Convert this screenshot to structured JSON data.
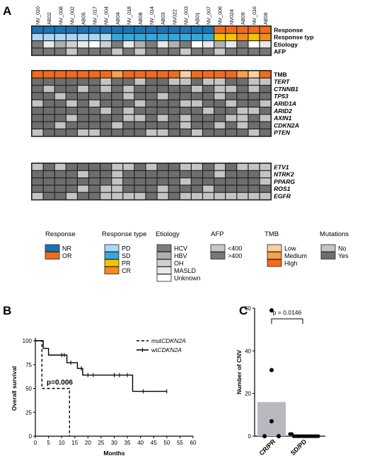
{
  "figure": {
    "panel_labels": {
      "a": "A",
      "b": "B",
      "c": "C"
    }
  },
  "colors": {
    "nr": "#1a73b5",
    "or": "#f26b1d",
    "pd": "#a8d8f4",
    "sd": "#36a7dc",
    "pr": "#f5c400",
    "cr": "#f58a1f",
    "hcv": "#7c7c7c",
    "hbv": "#b0b0b0",
    "oh": "#d0d0d0",
    "masld": "#e8e8e8",
    "unknown": "#ffffff",
    "afp_low": "#c8c8c8",
    "afp_high": "#777777",
    "tmb_low": "#fbcf9b",
    "tmb_medium": "#f9a049",
    "tmb_high": "#f26b1d",
    "mut_no": "#c4c4c4",
    "mut_yes": "#6e6e6e"
  },
  "heatmap": {
    "samples": [
      "NV_020",
      "AB02",
      "NV_008",
      "NV_002",
      "AB05",
      "NV_017",
      "NV_004",
      "AB04",
      "NV_018",
      "AB08",
      "NV_014",
      "AB03",
      "NV022",
      "NV_003",
      "AB01",
      "NV_007",
      "NV_006",
      "NV024",
      "AB09",
      "NV_016",
      "AB06"
    ],
    "block1": {
      "rows": [
        "Response",
        "Response typ",
        "Etiology",
        "AFP"
      ],
      "values": [
        [
          "nr",
          "nr",
          "nr",
          "nr",
          "nr",
          "nr",
          "nr",
          "nr",
          "nr",
          "nr",
          "nr",
          "nr",
          "nr",
          "nr",
          "nr",
          "nr",
          "or",
          "or",
          "or",
          "or",
          "or"
        ],
        [
          "pd",
          "pd",
          "pd",
          "pd",
          "pd",
          "pd",
          "pd",
          "sd",
          "sd",
          "sd",
          "sd",
          "sd",
          "sd",
          "sd",
          "sd",
          "sd",
          "pr",
          "pr",
          "cr",
          "pr",
          "cr"
        ],
        [
          "hcv",
          "masld",
          "hbv",
          "oh",
          "masld",
          "unknown",
          "oh",
          "hcv",
          "masld",
          "hbv",
          "hcv",
          "masld",
          "hbv",
          "hcv",
          "unknown",
          "masld",
          "hbv",
          "masld",
          "hcv",
          "unknown",
          "masld"
        ],
        [
          "afp_high",
          "afp_high",
          "afp_high",
          "afp_low",
          "afp_high",
          "afp_high",
          "afp_high",
          "afp_low",
          "afp_high",
          "afp_low",
          "afp_high",
          "afp_high",
          "afp_high",
          "afp_low",
          "afp_high",
          "afp_high",
          "afp_low",
          "afp_high",
          "afp_high",
          "afp_high",
          "afp_high"
        ]
      ]
    },
    "block2": {
      "rows": [
        "TMB",
        "TERT",
        "CTNNB1",
        "TP53",
        "ARID1A",
        "ARID2",
        "AXIN1",
        "CDKN2A",
        "PTEN"
      ],
      "tmb": [
        "tmb_high",
        "tmb_high",
        "tmb_high",
        "tmb_high",
        "tmb_high",
        "tmb_high",
        "tmb_high",
        "tmb_medium",
        "tmb_high",
        "tmb_high",
        "tmb_high",
        "tmb_high",
        "tmb_high",
        "tmb_low",
        "tmb_high",
        "tmb_high",
        "tmb_high",
        "tmb_high",
        "tmb_medium",
        "tmb_low",
        "tmb_high"
      ],
      "mutations": [
        [
          1,
          1,
          1,
          1,
          1,
          1,
          0,
          1,
          1,
          0,
          1,
          1,
          0,
          0,
          1,
          0,
          0,
          1,
          1,
          0,
          0
        ],
        [
          1,
          0,
          1,
          1,
          0,
          1,
          0,
          1,
          0,
          1,
          1,
          1,
          1,
          1,
          0,
          1,
          0,
          0,
          1,
          0,
          1
        ],
        [
          1,
          1,
          0,
          1,
          1,
          1,
          1,
          1,
          0,
          1,
          1,
          0,
          1,
          1,
          1,
          1,
          0,
          1,
          1,
          1,
          1
        ],
        [
          0,
          1,
          1,
          0,
          1,
          0,
          1,
          1,
          1,
          0,
          1,
          1,
          1,
          0,
          0,
          1,
          1,
          0,
          1,
          1,
          0
        ],
        [
          1,
          1,
          1,
          1,
          1,
          1,
          0,
          1,
          0,
          1,
          1,
          1,
          1,
          1,
          1,
          0,
          1,
          1,
          0,
          0,
          1
        ],
        [
          1,
          1,
          1,
          0,
          1,
          1,
          1,
          1,
          0,
          0,
          1,
          0,
          1,
          0,
          1,
          1,
          1,
          0,
          0,
          1,
          0
        ],
        [
          1,
          1,
          0,
          1,
          1,
          1,
          1,
          0,
          1,
          1,
          1,
          1,
          1,
          0,
          1,
          1,
          0,
          1,
          0,
          1,
          1
        ],
        [
          0,
          1,
          1,
          1,
          0,
          0,
          1,
          1,
          1,
          1,
          0,
          0,
          1,
          1,
          0,
          1,
          1,
          1,
          1,
          0,
          1
        ]
      ]
    },
    "block3": {
      "rows": [
        "ETV1",
        "NTRK2",
        "PPARG",
        "ROS1",
        "EGFR"
      ],
      "mutations": [
        [
          0,
          1,
          0,
          1,
          1,
          1,
          1,
          0,
          0,
          1,
          0,
          1,
          1,
          0,
          0,
          1,
          0,
          1,
          0,
          0,
          0
        ],
        [
          1,
          1,
          1,
          1,
          0,
          1,
          1,
          0,
          1,
          1,
          1,
          1,
          1,
          1,
          1,
          1,
          0,
          1,
          1,
          1,
          0
        ],
        [
          1,
          1,
          1,
          1,
          1,
          1,
          1,
          0,
          1,
          1,
          1,
          1,
          1,
          0,
          1,
          1,
          1,
          1,
          1,
          1,
          0
        ],
        [
          1,
          1,
          1,
          1,
          0,
          1,
          0,
          0,
          1,
          1,
          1,
          0,
          1,
          1,
          1,
          0,
          1,
          1,
          1,
          1,
          1
        ],
        [
          0,
          1,
          1,
          0,
          1,
          1,
          0,
          0,
          0,
          0,
          1,
          0,
          1,
          0,
          0,
          0,
          0,
          0,
          0,
          0,
          0
        ]
      ]
    }
  },
  "legend": {
    "response": {
      "title": "Response",
      "items": [
        {
          "label": "NR",
          "color": "nr"
        },
        {
          "label": "OR",
          "color": "or"
        }
      ]
    },
    "response_type": {
      "title": "Response type",
      "items": [
        {
          "label": "PD",
          "color": "pd"
        },
        {
          "label": "SD",
          "color": "sd"
        },
        {
          "label": "PR",
          "color": "pr"
        },
        {
          "label": "CR",
          "color": "cr"
        }
      ]
    },
    "etiology": {
      "title": "Etiology",
      "items": [
        {
          "label": "HCV",
          "color": "hcv"
        },
        {
          "label": "HBV",
          "color": "hbv"
        },
        {
          "label": "OH",
          "color": "oh"
        },
        {
          "label": "MASLD",
          "color": "masld"
        },
        {
          "label": "Unknown",
          "color": "unknown"
        }
      ]
    },
    "afp": {
      "title": "AFP",
      "items": [
        {
          "label": "<400",
          "color": "afp_low"
        },
        {
          "label": ">400",
          "color": "afp_high"
        }
      ]
    },
    "tmb": {
      "title": "TMB",
      "items": [
        {
          "label": "Low",
          "color": "tmb_low"
        },
        {
          "label": "Medium",
          "color": "tmb_medium"
        },
        {
          "label": "High",
          "color": "tmb_high"
        }
      ]
    },
    "mutations": {
      "title": "Mutations",
      "items": [
        {
          "label": "No",
          "color": "mut_no"
        },
        {
          "label": "Yes",
          "color": "mut_yes"
        }
      ]
    }
  },
  "chart_data": [
    {
      "type": "line",
      "subtype": "kaplan-meier",
      "xlabel": "Months",
      "ylabel": "Overall survival",
      "xlim": [
        0,
        60
      ],
      "ylim": [
        0,
        100
      ],
      "xticks": [
        0,
        5,
        10,
        15,
        20,
        25,
        30,
        35,
        40,
        45,
        50,
        55,
        60
      ],
      "yticks": [
        0,
        25,
        50,
        75,
        100
      ],
      "annotation": "p=0.006",
      "legend_position": "top-right",
      "series": [
        {
          "name_prefix": "mut",
          "name_gene": "CDKN2A",
          "style": "dashed",
          "steps": [
            [
              0,
              100
            ],
            [
              2.5,
              100
            ],
            [
              2.5,
              50
            ],
            [
              13,
              50
            ],
            [
              13,
              0
            ]
          ],
          "censors": []
        },
        {
          "name_prefix": "wt",
          "name_gene": "CDKN2A",
          "style": "solid",
          "steps": [
            [
              0,
              100
            ],
            [
              3,
              100
            ],
            [
              3,
              92
            ],
            [
              5,
              92
            ],
            [
              5,
              85
            ],
            [
              12,
              85
            ],
            [
              12,
              77
            ],
            [
              16,
              77
            ],
            [
              16,
              71
            ],
            [
              18,
              71
            ],
            [
              18,
              64
            ],
            [
              37,
              64
            ],
            [
              37,
              47
            ],
            [
              50,
              47
            ]
          ],
          "censors": [
            [
              10,
              85
            ],
            [
              11,
              85
            ],
            [
              13.5,
              77
            ],
            [
              17.5,
              71
            ],
            [
              20,
              64
            ],
            [
              22,
              64
            ],
            [
              30,
              64
            ],
            [
              32,
              64
            ],
            [
              35,
              64
            ],
            [
              41,
              47
            ],
            [
              50,
              47
            ]
          ]
        }
      ]
    },
    {
      "type": "bar",
      "ylabel": "Number of CNV",
      "ylim": [
        0,
        60
      ],
      "yticks": [
        0,
        20,
        40,
        60
      ],
      "categories": [
        "CR/PR",
        "SD/PD"
      ],
      "values": [
        16,
        0.2
      ],
      "points": [
        [
          59,
          31,
          7,
          0,
          0
        ],
        [
          1,
          1,
          0,
          0,
          0,
          0,
          0,
          0,
          0,
          0,
          0,
          0,
          0,
          0,
          0,
          0
        ]
      ],
      "annotation": "p = 0.0146"
    }
  ]
}
